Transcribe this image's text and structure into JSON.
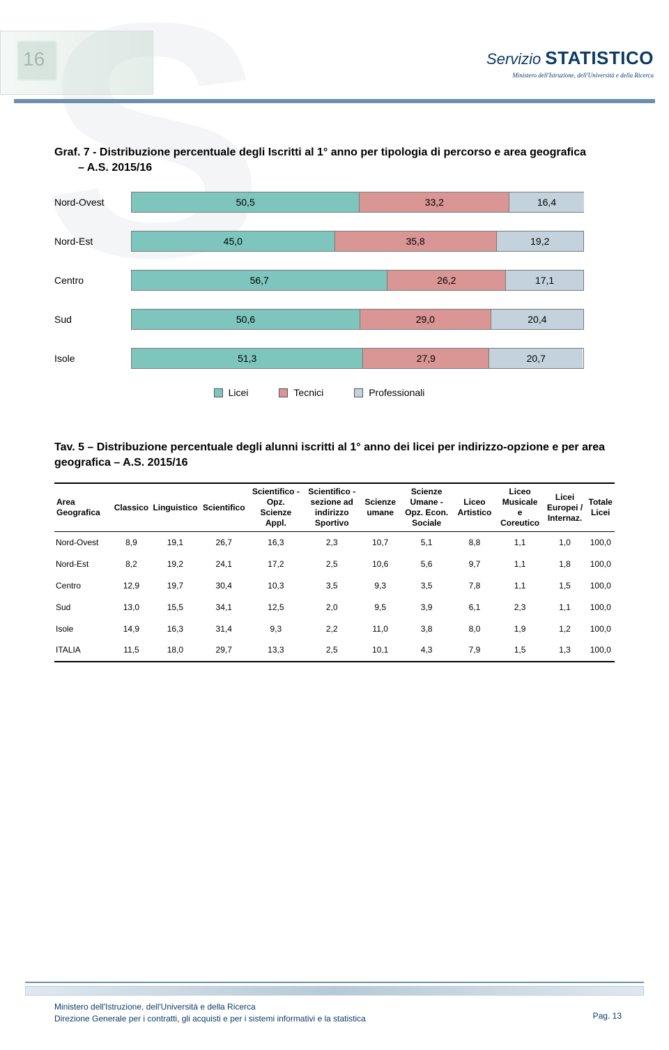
{
  "brand": {
    "servizio": "Servizio",
    "statistico": "STATISTICO",
    "sub": "Ministero dell'Istruzione, dell'Università e della Ricerca"
  },
  "chart": {
    "title_line1": "Graf. 7 - Distribuzione percentuale degli Iscritti al 1° anno per tipologia di percorso e area geografica",
    "title_line2": "– A.S. 2015/16",
    "categories": [
      "Nord-Ovest",
      "Nord-Est",
      "Centro",
      "Sud",
      "Isole"
    ],
    "series_labels": [
      "Licei",
      "Tecnici",
      "Professionali"
    ],
    "series_colors": [
      "#7ec6bd",
      "#d99694",
      "#c4d2dd"
    ],
    "values": [
      [
        50.5,
        33.2,
        16.4
      ],
      [
        45.0,
        35.8,
        19.2
      ],
      [
        56.7,
        26.2,
        17.1
      ],
      [
        50.6,
        29.0,
        20.4
      ],
      [
        51.3,
        27.9,
        20.7
      ]
    ],
    "labels": [
      [
        "50,5",
        "33,2",
        "16,4"
      ],
      [
        "45,0",
        "35,8",
        "19,2"
      ],
      [
        "56,7",
        "26,2",
        "17,1"
      ],
      [
        "50,6",
        "29,0",
        "20,4"
      ],
      [
        "51,3",
        "27,9",
        "20,7"
      ]
    ]
  },
  "tav": {
    "title": "Tav. 5 – Distribuzione percentuale degli alunni iscritti al 1° anno dei licei per indirizzo-opzione e per area geografica – A.S. 2015/16",
    "columns": [
      "Area Geografica",
      "Classico",
      "Linguistico",
      "Scientifico",
      "Scientifico - Opz. Scienze Appl.",
      "Scientifico - sezione ad indirizzo Sportivo",
      "Scienze umane",
      "Scienze Umane - Opz. Econ. Sociale",
      "Liceo Artistico",
      "Liceo Musicale e Coreutico",
      "Licei Europei / Internaz.",
      "Totale Licei"
    ],
    "col_widths_pct": [
      10.5,
      6.8,
      8.8,
      8.6,
      10.2,
      10.2,
      7.4,
      9.6,
      8.0,
      8.4,
      7.8,
      7.0
    ],
    "rows": [
      {
        "label": "Nord-Ovest",
        "cells": [
          "8,9",
          "19,1",
          "26,7",
          "16,3",
          "2,3",
          "10,7",
          "5,1",
          "8,8",
          "1,1",
          "1,0",
          "100,0"
        ]
      },
      {
        "label": "Nord-Est",
        "cells": [
          "8,2",
          "19,2",
          "24,1",
          "17,2",
          "2,5",
          "10,6",
          "5,6",
          "9,7",
          "1,1",
          "1,8",
          "100,0"
        ]
      },
      {
        "label": "Centro",
        "cells": [
          "12,9",
          "19,7",
          "30,4",
          "10,3",
          "3,5",
          "9,3",
          "3,5",
          "7,8",
          "1,1",
          "1,5",
          "100,0"
        ]
      },
      {
        "label": "Sud",
        "cells": [
          "13,0",
          "15,5",
          "34,1",
          "12,5",
          "2,0",
          "9,5",
          "3,9",
          "6,1",
          "2,3",
          "1,1",
          "100,0"
        ]
      },
      {
        "label": "Isole",
        "cells": [
          "14,9",
          "16,3",
          "31,4",
          "9,3",
          "2,2",
          "11,0",
          "3,8",
          "8,0",
          "1,9",
          "1,2",
          "100,0"
        ]
      },
      {
        "label": "ITALIA",
        "cells": [
          "11,5",
          "18,0",
          "29,7",
          "13,3",
          "2,5",
          "10,1",
          "4,3",
          "7,9",
          "1,5",
          "1,3",
          "100,0"
        ]
      }
    ]
  },
  "footer": {
    "line1": "Ministero dell'Istruzione, dell'Università e della Ricerca",
    "line2": "Direzione Generale per i contratti, gli acquisti e per i sistemi informativi e la statistica",
    "page": "Pag. 13"
  }
}
